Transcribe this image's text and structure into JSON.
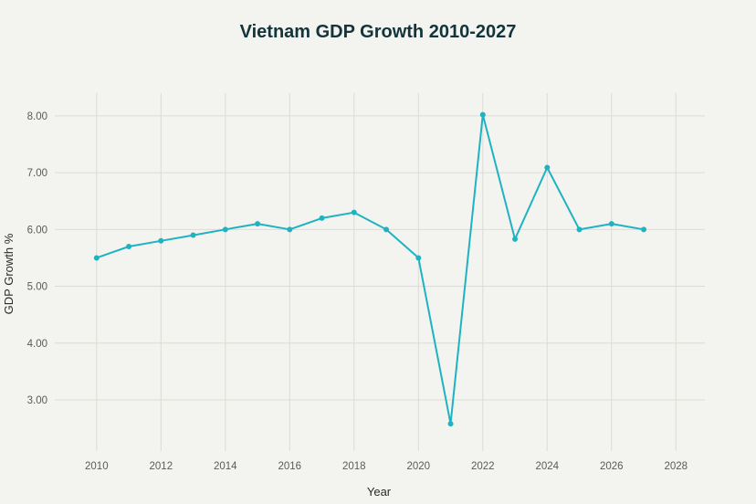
{
  "chart_data": {
    "type": "line",
    "title": "Vietnam GDP Growth 2010-2027",
    "xlabel": "Year",
    "ylabel": "GDP Growth %",
    "xlim": [
      2008.7,
      2028.9
    ],
    "ylim": [
      2.1,
      8.4
    ],
    "x_ticks": [
      2010,
      2012,
      2014,
      2016,
      2018,
      2020,
      2022,
      2024,
      2026,
      2028
    ],
    "x_tick_labels": [
      "2010",
      "2012",
      "2014",
      "2016",
      "2018",
      "2020",
      "2022",
      "2024",
      "2026",
      "2028"
    ],
    "y_ticks": [
      3,
      4,
      5,
      6,
      7,
      8
    ],
    "y_tick_labels": [
      "3.00",
      "4.00",
      "5.00",
      "6.00",
      "7.00",
      "8.00"
    ],
    "grid": true,
    "series": [
      {
        "color": "#1fb3c2",
        "x": [
          2010,
          2011,
          2012,
          2013,
          2014,
          2015,
          2016,
          2017,
          2018,
          2019,
          2020,
          2021,
          2022,
          2023,
          2024,
          2025,
          2026,
          2027
        ],
        "values": [
          5.5,
          5.7,
          5.8,
          5.9,
          6.0,
          6.1,
          6.0,
          6.2,
          6.3,
          6.0,
          5.5,
          2.58,
          8.02,
          5.83,
          7.09,
          6.0,
          6.1,
          6.0
        ]
      }
    ]
  }
}
